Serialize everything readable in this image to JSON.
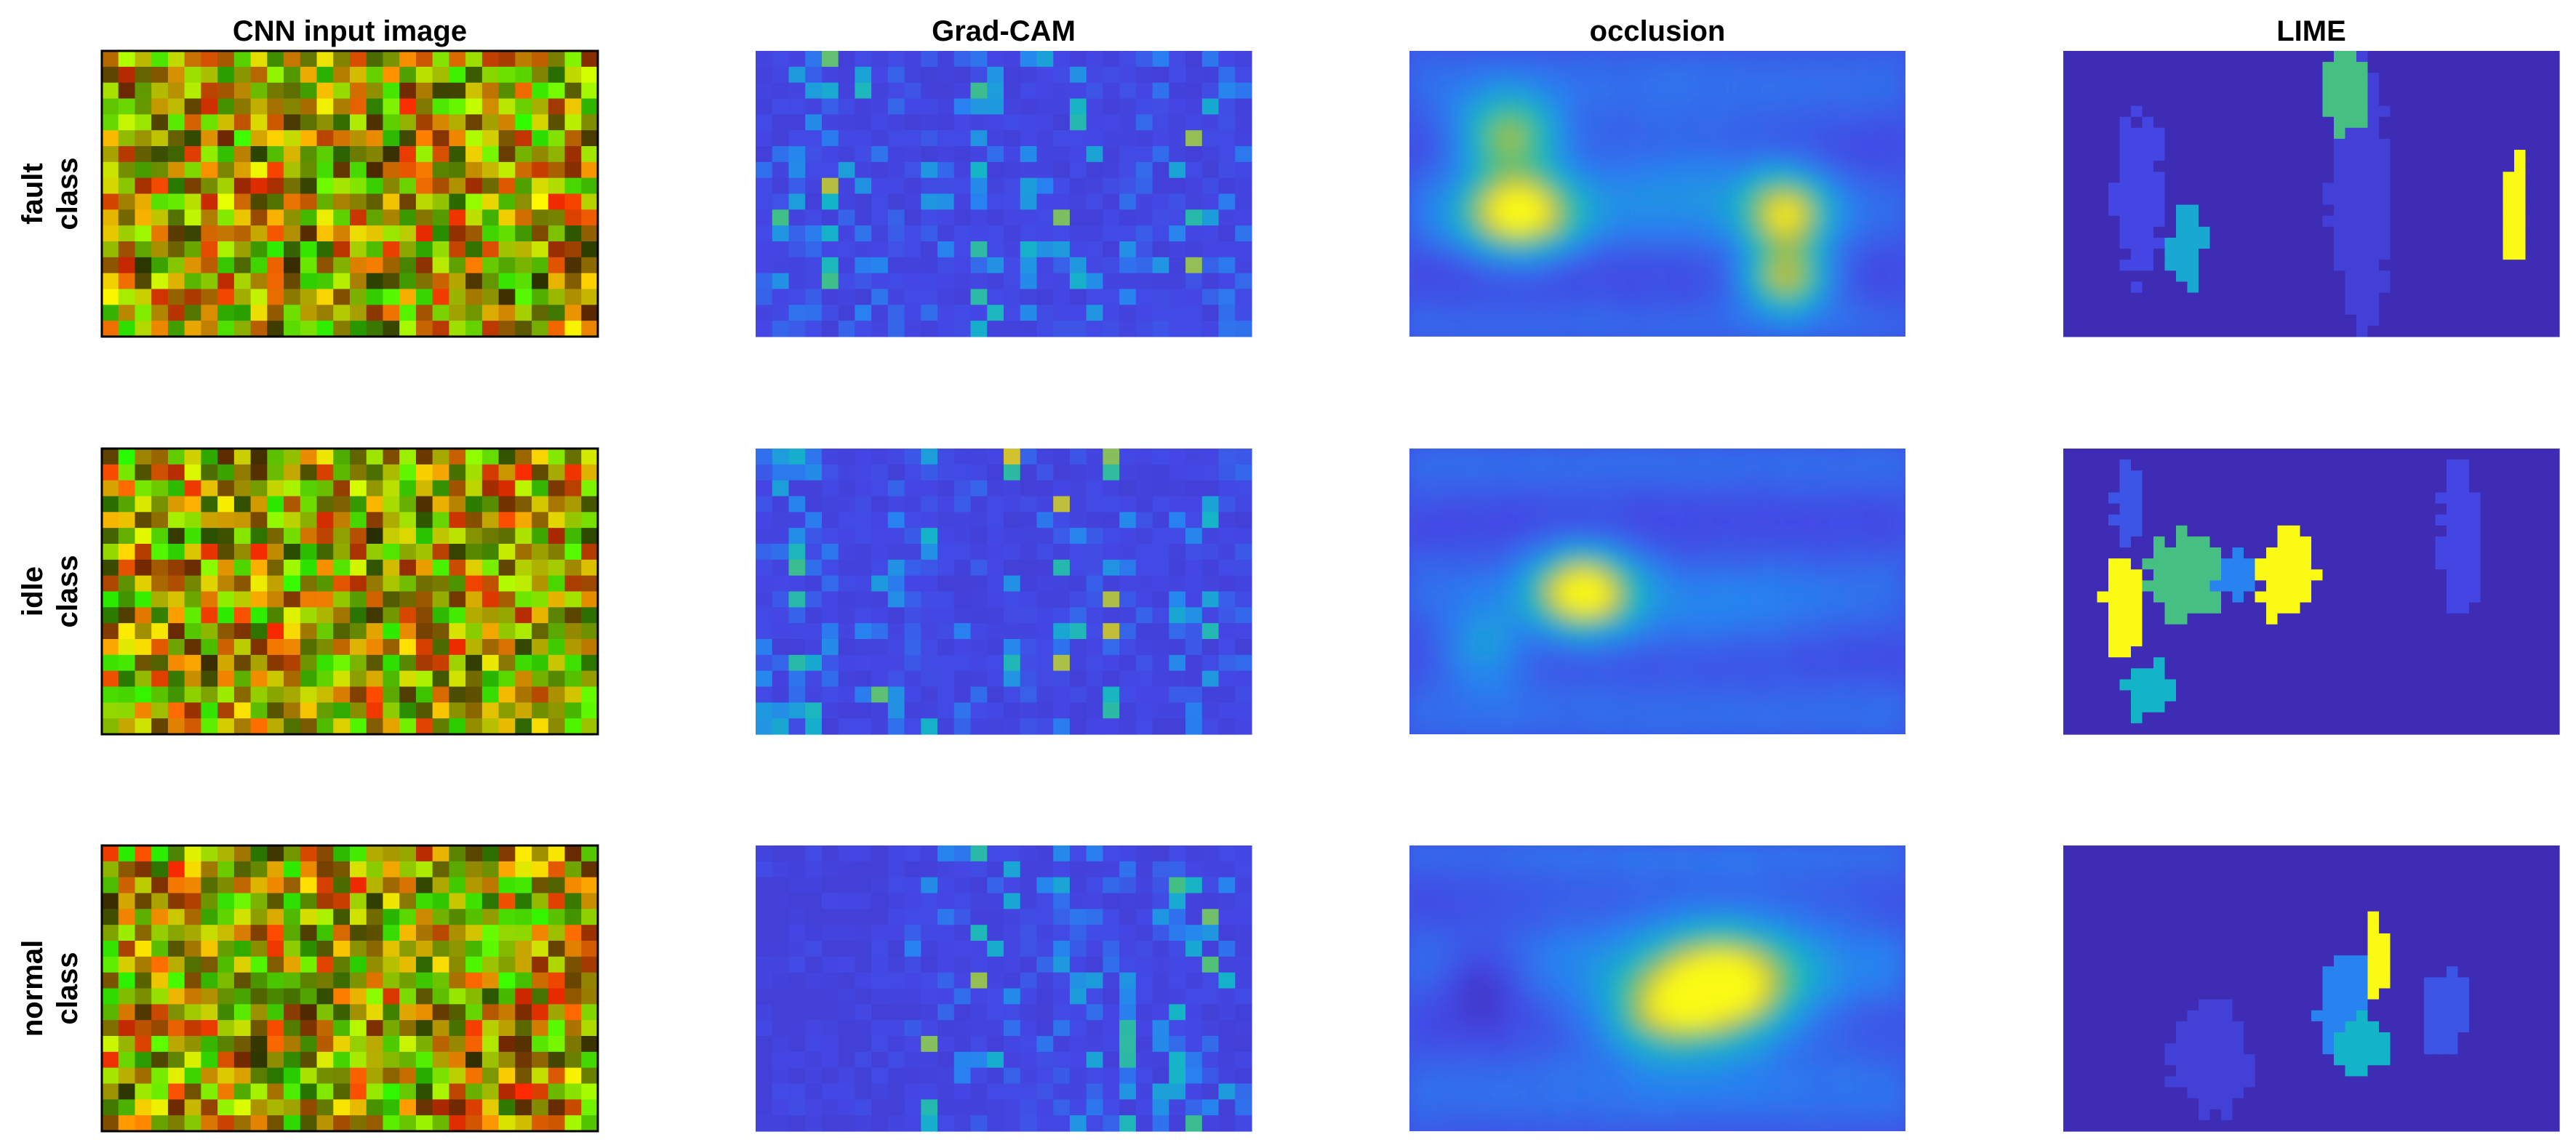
{
  "columns": [
    "CNN input image",
    "Grad-CAM",
    "occlusion",
    "LIME"
  ],
  "rows": [
    [
      "fault",
      "class"
    ],
    [
      "idle",
      "class"
    ],
    [
      "normal",
      "class"
    ]
  ]
}
